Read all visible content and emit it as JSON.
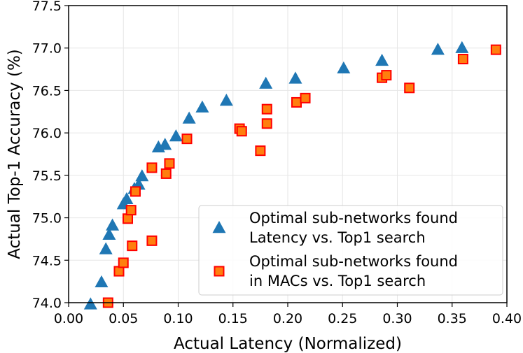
{
  "chart_data": {
    "type": "scatter",
    "xlabel": "Actual Latency (Normalized)",
    "ylabel": "Actual Top-1 Accuracy (%)",
    "xlim": [
      0.0,
      0.4
    ],
    "ylim": [
      74.0,
      77.5
    ],
    "xticks": [
      0.0,
      0.05,
      0.1,
      0.15,
      0.2,
      0.25,
      0.3,
      0.35,
      0.4
    ],
    "xtick_labels": [
      "0.00",
      "0.05",
      "0.10",
      "0.15",
      "0.20",
      "0.25",
      "0.30",
      "0.35",
      "0.40"
    ],
    "yticks": [
      74.0,
      74.5,
      75.0,
      75.5,
      76.0,
      76.5,
      77.0,
      77.5
    ],
    "ytick_labels": [
      "74.0",
      "74.5",
      "75.0",
      "75.5",
      "76.0",
      "76.5",
      "77.0",
      "77.5"
    ],
    "grid": true,
    "legend_position": "lower-right",
    "series": [
      {
        "name": "Optimal sub-networks found Latency vs. Top1 search",
        "legend_lines": [
          "Optimal sub-networks found",
          "Latency vs. Top1 search"
        ],
        "marker": "triangle",
        "color": "#1f77b4",
        "points": [
          [
            0.02,
            73.98
          ],
          [
            0.03,
            74.24
          ],
          [
            0.034,
            74.63
          ],
          [
            0.037,
            74.8
          ],
          [
            0.04,
            74.91
          ],
          [
            0.05,
            75.16
          ],
          [
            0.053,
            75.22
          ],
          [
            0.06,
            75.34
          ],
          [
            0.064,
            75.39
          ],
          [
            0.067,
            75.49
          ],
          [
            0.082,
            75.83
          ],
          [
            0.088,
            75.86
          ],
          [
            0.098,
            75.96
          ],
          [
            0.11,
            76.17
          ],
          [
            0.122,
            76.3
          ],
          [
            0.144,
            76.38
          ],
          [
            0.18,
            76.58
          ],
          [
            0.207,
            76.64
          ],
          [
            0.251,
            76.76
          ],
          [
            0.286,
            76.85
          ],
          [
            0.337,
            76.98
          ],
          [
            0.359,
            77.0
          ]
        ]
      },
      {
        "name": "Optimal sub-networks found in MACs vs. Top1 search",
        "legend_lines": [
          "Optimal sub-networks found",
          "in MACs vs. Top1 search"
        ],
        "marker": "square",
        "color": "#ff7f0e",
        "edgecolor": "#ff0000",
        "points": [
          [
            0.036,
            74.0
          ],
          [
            0.046,
            74.37
          ],
          [
            0.05,
            74.47
          ],
          [
            0.058,
            74.67
          ],
          [
            0.054,
            74.99
          ],
          [
            0.057,
            75.09
          ],
          [
            0.061,
            75.31
          ],
          [
            0.076,
            74.73
          ],
          [
            0.076,
            75.59
          ],
          [
            0.089,
            75.52
          ],
          [
            0.092,
            75.64
          ],
          [
            0.108,
            75.93
          ],
          [
            0.156,
            76.05
          ],
          [
            0.158,
            76.02
          ],
          [
            0.175,
            75.79
          ],
          [
            0.181,
            76.11
          ],
          [
            0.181,
            76.28
          ],
          [
            0.208,
            76.36
          ],
          [
            0.216,
            76.41
          ],
          [
            0.286,
            76.65
          ],
          [
            0.29,
            76.68
          ],
          [
            0.311,
            76.53
          ],
          [
            0.36,
            76.87
          ],
          [
            0.39,
            76.98
          ]
        ]
      }
    ]
  }
}
